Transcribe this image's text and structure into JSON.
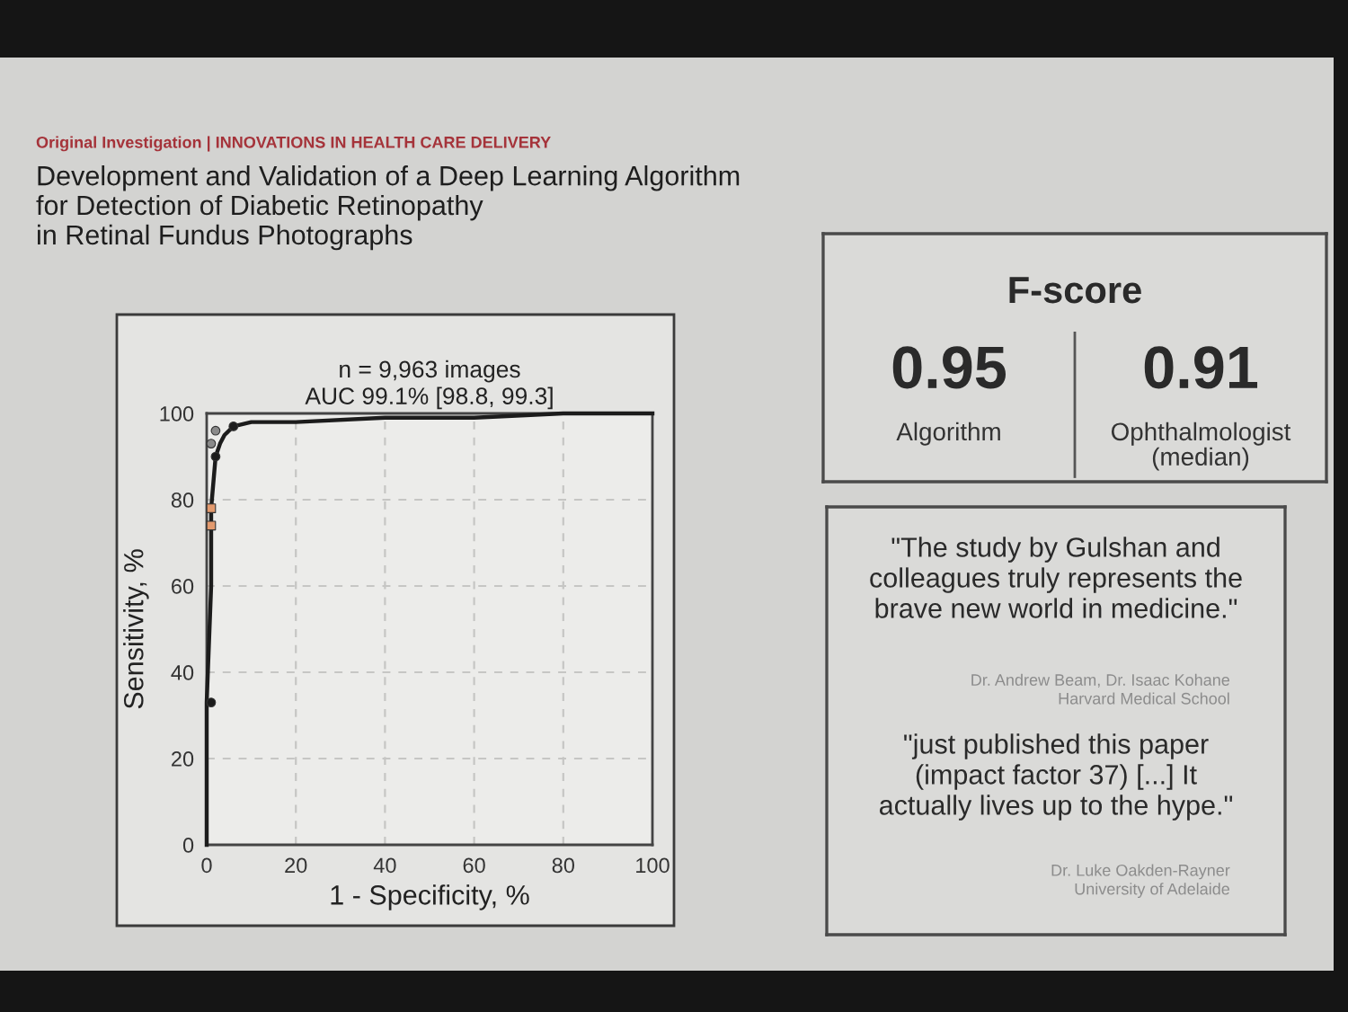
{
  "chart_data": [
    {
      "type": "line",
      "subtitle": "Original Investigation | INNOVATIONS IN HEALTH CARE DELIVERY",
      "title": "Development and Validation of a Deep Learning Algorithm\nfor Detection of Diabetic Retinopathy\nin Retinal Fundus Photographs",
      "annotations": [
        "n = 9,963 images",
        "AUC 99.1% [98.8, 99.3]"
      ],
      "xlabel": "1 - Specificity, %",
      "ylabel": "Sensitivity, %",
      "xlim": [
        0,
        100
      ],
      "ylim": [
        0,
        100
      ],
      "xticks": [
        0,
        20,
        40,
        60,
        80,
        100
      ],
      "yticks": [
        0,
        20,
        40,
        60,
        80,
        100
      ],
      "grid": true,
      "series": [
        {
          "color": "#1c1c1c",
          "marker": "none",
          "line_style": "solid",
          "x": [
            0,
            0,
            1,
            1,
            2,
            3,
            4,
            6,
            10,
            20,
            40,
            60,
            80,
            100
          ],
          "values": [
            0,
            33,
            60,
            78,
            90,
            93,
            95,
            97,
            98,
            98,
            99,
            99,
            100,
            100
          ]
        },
        {
          "type": "scatter",
          "color": "#1c1c1c",
          "marker": "circle",
          "x": [
            1,
            2,
            6
          ],
          "values": [
            33,
            90,
            97
          ]
        },
        {
          "type": "scatter",
          "color": "#e39a6e",
          "marker": "square",
          "x": [
            1,
            1
          ],
          "values": [
            78,
            74
          ]
        },
        {
          "type": "scatter",
          "color": "#8a8a8a",
          "marker": "circle",
          "x": [
            1,
            2
          ],
          "values": [
            93,
            96
          ]
        }
      ]
    },
    {
      "type": "other",
      "title": "F-score",
      "categories": [
        "Algorithm",
        "Ophthalmologist\n(median)"
      ],
      "values": [
        0.95,
        0.91
      ],
      "data_labels": true
    },
    {
      "type": "other",
      "annotations": [
        "\"The study by Gulshan and\ncolleagues truly represents the\nbrave new world in medicine.\"",
        "Dr. Andrew Beam, Dr. Isaac Kohane\nHarvard Medical School",
        "\"just published this paper\n(impact factor 37) [...] It\nactually lives up to the hype.\"",
        "Dr. Luke Oakden-Rayner\nUniversity of Adelaide"
      ]
    }
  ]
}
